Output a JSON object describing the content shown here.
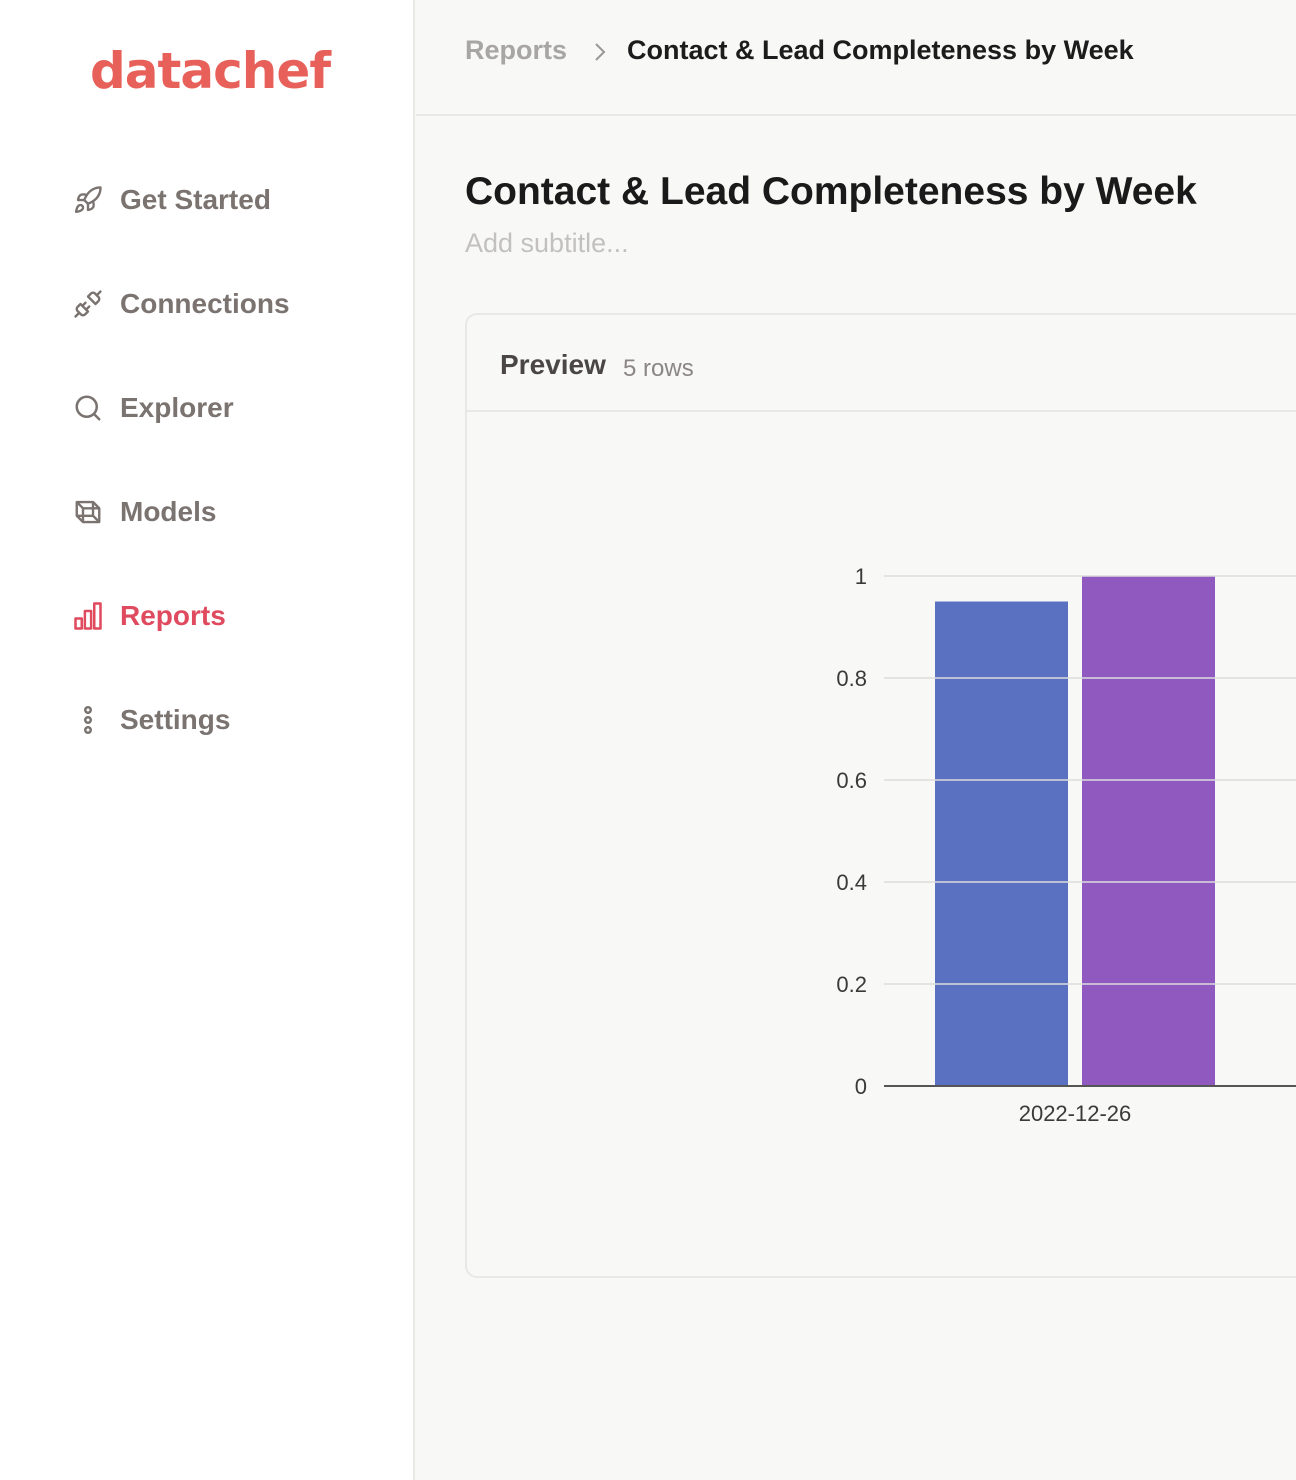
{
  "sidebar": {
    "logo": "datachef",
    "items": [
      {
        "label": "Get Started",
        "icon": "rocket-icon"
      },
      {
        "label": "Connections",
        "icon": "plug-icon"
      },
      {
        "label": "Explorer",
        "icon": "search-icon"
      },
      {
        "label": "Models",
        "icon": "cube-icon"
      },
      {
        "label": "Reports",
        "icon": "bar-chart-icon",
        "active": true
      },
      {
        "label": "Settings",
        "icon": "more-vertical-icon"
      }
    ]
  },
  "header": {
    "breadcrumb_root": "Reports",
    "breadcrumb_current": "Contact & Lead Completeness by Week"
  },
  "page": {
    "title": "Contact & Lead Completeness by Week",
    "subtitle_placeholder": "Add subtitle..."
  },
  "preview": {
    "title": "Preview",
    "row_count": "5 rows"
  },
  "colors": {
    "brand": "#e8605a",
    "active_nav": "#df4a5e",
    "series_1": "#5a70c0",
    "series_2": "#8f59c0"
  },
  "chart_data": {
    "type": "bar",
    "categories": [
      "2022-12-26"
    ],
    "series": [
      {
        "values": [
          0.95
        ],
        "color": "#5a70c0"
      },
      {
        "values": [
          1.0
        ],
        "color": "#8f59c0"
      }
    ],
    "yticks": [
      "0",
      "0.2",
      "0.4",
      "0.6",
      "0.8",
      "1"
    ],
    "ylim": [
      0,
      1
    ],
    "grid": true
  }
}
